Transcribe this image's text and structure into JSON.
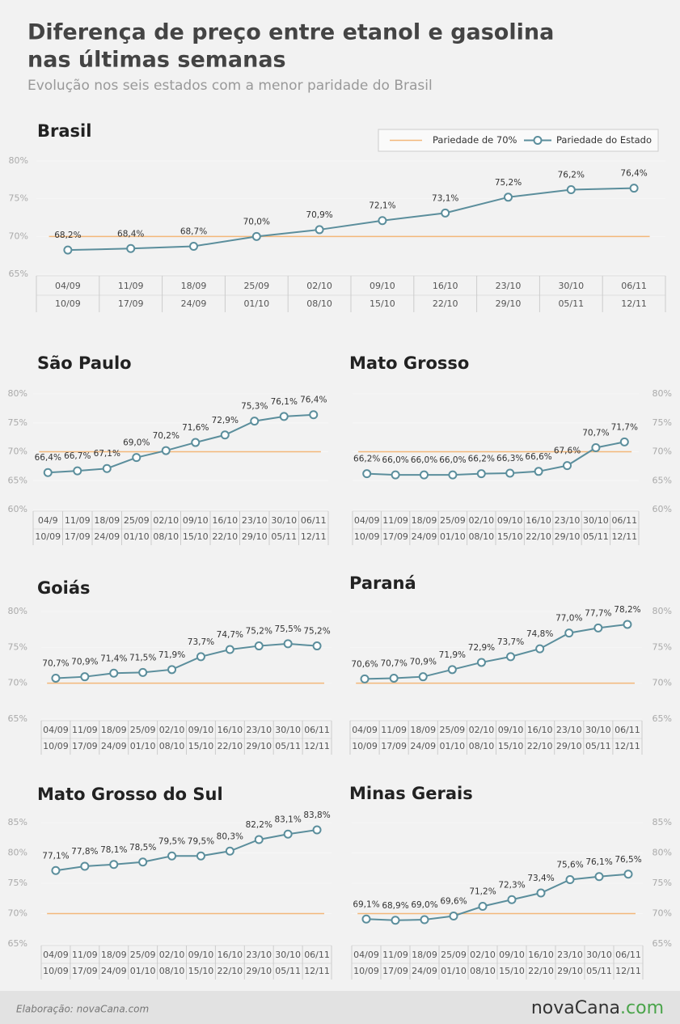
{
  "header": {
    "title": [
      "Diferença de preço entre etanol e gasolina",
      "nas últimas semanas"
    ],
    "subtitle": "Evolução nos seis estados com a menor paridade do Brasil"
  },
  "chart_data": [
    {
      "type": "line",
      "title": "Brasil",
      "legend": "top-right",
      "categories": [
        [
          "04/09",
          "10/09"
        ],
        [
          "11/09",
          "17/09"
        ],
        [
          "18/09",
          "24/09"
        ],
        [
          "25/09",
          "01/10"
        ],
        [
          "02/10",
          "08/10"
        ],
        [
          "09/10",
          "15/10"
        ],
        [
          "16/10",
          "22/10"
        ],
        [
          "23/10",
          "29/10"
        ],
        [
          "30/10",
          "05/11"
        ],
        [
          "06/11",
          "12/11"
        ]
      ],
      "series": [
        {
          "name": "Pariedade do Estado",
          "color": "#5b8e9c",
          "values": [
            68.2,
            68.4,
            68.7,
            70.0,
            70.9,
            72.1,
            73.1,
            75.2,
            76.2,
            76.4
          ],
          "value_labels": [
            "68,2%",
            "68,4%",
            "68,7%",
            "70,0%",
            "70,9%",
            "72,1%",
            "73,1%",
            "75,2%",
            "76,2%",
            "76,4%"
          ]
        }
      ],
      "reference": {
        "name": "Pariedade de 70%",
        "value": 70,
        "color": "#f3b77a"
      },
      "ylim": [
        65,
        80
      ],
      "yticks": [
        {
          "value": 65,
          "label": "65%"
        },
        {
          "value": 70,
          "label": "70%"
        },
        {
          "value": 75,
          "label": "75%"
        },
        {
          "value": 80,
          "label": "80%"
        }
      ],
      "yaxis_side": "left"
    },
    {
      "type": "line",
      "title": "São Paulo",
      "categories": [
        [
          "04/9",
          "10/09"
        ],
        [
          "11/09",
          "17/09"
        ],
        [
          "18/09",
          "24/09"
        ],
        [
          "25/09",
          "01/10"
        ],
        [
          "02/10",
          "08/10"
        ],
        [
          "09/10",
          "15/10"
        ],
        [
          "16/10",
          "22/10"
        ],
        [
          "23/10",
          "29/10"
        ],
        [
          "30/10",
          "05/11"
        ],
        [
          "06/11",
          "12/11"
        ]
      ],
      "series": [
        {
          "color": "#5b8e9c",
          "values": [
            66.4,
            66.7,
            67.1,
            69.0,
            70.2,
            71.6,
            72.9,
            75.3,
            76.1,
            76.4
          ],
          "value_labels": [
            "66,4%",
            "66,7%",
            "67,1%",
            "69,0%",
            "70,2%",
            "71,6%",
            "72,9%",
            "75,3%",
            "76,1%",
            "76,4%"
          ]
        }
      ],
      "reference": {
        "value": 70,
        "color": "#f3b77a"
      },
      "ylim": [
        60,
        80
      ],
      "yticks": [
        {
          "value": 60,
          "label": "60%"
        },
        {
          "value": 65,
          "label": "65%"
        },
        {
          "value": 70,
          "label": "70%"
        },
        {
          "value": 75,
          "label": "75%"
        },
        {
          "value": 80,
          "label": "80%"
        }
      ],
      "yaxis_side": "left"
    },
    {
      "type": "line",
      "title": "Mato Grosso",
      "categories": [
        [
          "04/09",
          "10/09"
        ],
        [
          "11/09",
          "17/09"
        ],
        [
          "18/09",
          "24/09"
        ],
        [
          "25/09",
          "01/10"
        ],
        [
          "02/10",
          "08/10"
        ],
        [
          "09/10",
          "15/10"
        ],
        [
          "16/10",
          "22/10"
        ],
        [
          "23/10",
          "29/10"
        ],
        [
          "30/10",
          "05/11"
        ],
        [
          "06/11",
          "12/11"
        ]
      ],
      "series": [
        {
          "color": "#5b8e9c",
          "values": [
            66.2,
            66.0,
            66.0,
            66.0,
            66.2,
            66.3,
            66.6,
            67.6,
            70.7,
            71.7
          ],
          "value_labels": [
            "66,2%",
            "66,0%",
            "66,0%",
            "66,0%",
            "66,2%",
            "66,3%",
            "66,6%",
            "67,6%",
            "70,7%",
            "71,7%"
          ]
        }
      ],
      "reference": {
        "value": 70,
        "color": "#f3b77a"
      },
      "ylim": [
        60,
        80
      ],
      "yticks": [
        {
          "value": 60,
          "label": "60%"
        },
        {
          "value": 65,
          "label": "65%"
        },
        {
          "value": 70,
          "label": "70%"
        },
        {
          "value": 75,
          "label": "75%"
        },
        {
          "value": 80,
          "label": "80%"
        }
      ],
      "yaxis_side": "right"
    },
    {
      "type": "line",
      "title": "Goiás",
      "categories": [
        [
          "04/09",
          "10/09"
        ],
        [
          "11/09",
          "17/09"
        ],
        [
          "18/09",
          "24/09"
        ],
        [
          "25/09",
          "01/10"
        ],
        [
          "02/10",
          "08/10"
        ],
        [
          "09/10",
          "15/10"
        ],
        [
          "16/10",
          "22/10"
        ],
        [
          "23/10",
          "29/10"
        ],
        [
          "30/10",
          "05/11"
        ],
        [
          "06/11",
          "12/11"
        ]
      ],
      "series": [
        {
          "color": "#5b8e9c",
          "values": [
            70.7,
            70.9,
            71.4,
            71.5,
            71.9,
            73.7,
            74.7,
            75.2,
            75.5,
            75.2
          ],
          "value_labels": [
            "70,7%",
            "70,9%",
            "71,4%",
            "71,5%",
            "71,9%",
            "73,7%",
            "74,7%",
            "75,2%",
            "75,5%",
            "75,2%"
          ]
        }
      ],
      "reference": {
        "value": 70,
        "color": "#f3b77a"
      },
      "ylim": [
        65,
        80
      ],
      "yticks": [
        {
          "value": 65,
          "label": "65%"
        },
        {
          "value": 70,
          "label": "70%"
        },
        {
          "value": 75,
          "label": "75%"
        },
        {
          "value": 80,
          "label": "80%"
        }
      ],
      "yaxis_side": "left"
    },
    {
      "type": "line",
      "title": "Paraná",
      "categories": [
        [
          "04/09",
          "10/09"
        ],
        [
          "11/09",
          "17/09"
        ],
        [
          "18/09",
          "24/09"
        ],
        [
          "25/09",
          "01/10"
        ],
        [
          "02/10",
          "08/10"
        ],
        [
          "09/10",
          "15/10"
        ],
        [
          "16/10",
          "22/10"
        ],
        [
          "23/10",
          "29/10"
        ],
        [
          "30/10",
          "05/11"
        ],
        [
          "06/11",
          "12/11"
        ]
      ],
      "series": [
        {
          "color": "#5b8e9c",
          "values": [
            70.6,
            70.7,
            70.9,
            71.9,
            72.9,
            73.7,
            74.8,
            77.0,
            77.7,
            78.2
          ],
          "value_labels": [
            "70,6%",
            "70,7%",
            "70,9%",
            "71,9%",
            "72,9%",
            "73,7%",
            "74,8%",
            "77,0%",
            "77,7%",
            "78,2%"
          ]
        }
      ],
      "reference": {
        "value": 70,
        "color": "#f3b77a"
      },
      "ylim": [
        65,
        80
      ],
      "yticks": [
        {
          "value": 65,
          "label": "65%"
        },
        {
          "value": 70,
          "label": "70%"
        },
        {
          "value": 75,
          "label": "75%"
        },
        {
          "value": 80,
          "label": "80%"
        }
      ],
      "yaxis_side": "right"
    },
    {
      "type": "line",
      "title": "Mato Grosso do Sul",
      "categories": [
        [
          "04/09",
          "10/09"
        ],
        [
          "11/09",
          "17/09"
        ],
        [
          "18/09",
          "24/09"
        ],
        [
          "25/09",
          "01/10"
        ],
        [
          "02/10",
          "08/10"
        ],
        [
          "09/10",
          "15/10"
        ],
        [
          "16/10",
          "22/10"
        ],
        [
          "23/10",
          "29/10"
        ],
        [
          "30/10",
          "05/11"
        ],
        [
          "06/11",
          "12/11"
        ]
      ],
      "series": [
        {
          "color": "#5b8e9c",
          "values": [
            77.1,
            77.8,
            78.1,
            78.5,
            79.5,
            79.5,
            80.3,
            82.2,
            83.1,
            83.8
          ],
          "value_labels": [
            "77,1%",
            "77,8%",
            "78,1%",
            "78,5%",
            "79,5%",
            "79,5%",
            "80,3%",
            "82,2%",
            "83,1%",
            "83,8%"
          ]
        }
      ],
      "reference": {
        "value": 70,
        "color": "#f3b77a"
      },
      "ylim": [
        65,
        85
      ],
      "yticks": [
        {
          "value": 65,
          "label": "65%"
        },
        {
          "value": 70,
          "label": "70%"
        },
        {
          "value": 75,
          "label": "75%"
        },
        {
          "value": 80,
          "label": "80%"
        },
        {
          "value": 85,
          "label": "85%"
        }
      ],
      "yaxis_side": "left"
    },
    {
      "type": "line",
      "title": "Minas Gerais",
      "categories": [
        [
          "04/09",
          "10/09"
        ],
        [
          "11/09",
          "17/09"
        ],
        [
          "18/09",
          "24/09"
        ],
        [
          "25/09",
          "01/10"
        ],
        [
          "02/10",
          "08/10"
        ],
        [
          "09/10",
          "15/10"
        ],
        [
          "16/10",
          "22/10"
        ],
        [
          "23/10",
          "29/10"
        ],
        [
          "30/10",
          "05/11"
        ],
        [
          "06/11",
          "12/11"
        ]
      ],
      "series": [
        {
          "color": "#5b8e9c",
          "values": [
            69.1,
            68.9,
            69.0,
            69.6,
            71.2,
            72.3,
            73.4,
            75.6,
            76.1,
            76.5
          ],
          "value_labels": [
            "69,1%",
            "68,9%",
            "69,0%",
            "69,6%",
            "71,2%",
            "72,3%",
            "73,4%",
            "75,6%",
            "76,1%",
            "76,5%"
          ]
        }
      ],
      "reference": {
        "value": 70,
        "color": "#f3b77a"
      },
      "ylim": [
        65,
        85
      ],
      "yticks": [
        {
          "value": 65,
          "label": "65%"
        },
        {
          "value": 70,
          "label": "70%"
        },
        {
          "value": 75,
          "label": "75%"
        },
        {
          "value": 80,
          "label": "80%"
        },
        {
          "value": 85,
          "label": "85%"
        }
      ],
      "yaxis_side": "right"
    }
  ],
  "footer": {
    "credit": "Elaboração: novaCana.com",
    "logo": [
      "novaCana",
      ".com"
    ]
  }
}
